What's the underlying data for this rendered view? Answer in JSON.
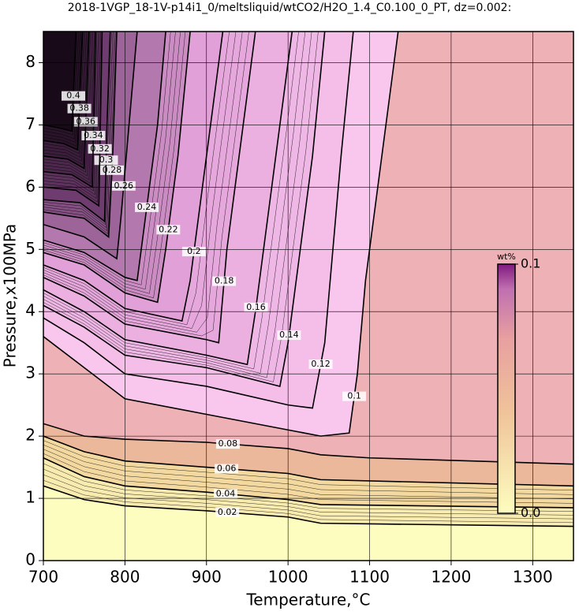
{
  "chart_data": {
    "type": "contour",
    "title": "2018-1VGP_18-1V-p14i1_0/meltsliquid/wtCO2/H2O_1.4_C0.100_0_PT, dz=0.002:",
    "x_label": "Temperature,°C",
    "y_label": "Pressure,x100MPa",
    "xlim": [
      700,
      1350
    ],
    "ylim": [
      0,
      8.5
    ],
    "xticks": [
      700,
      800,
      900,
      1000,
      1100,
      1200,
      1300
    ],
    "yticks": [
      0,
      1,
      2,
      3,
      4,
      5,
      6,
      7,
      8
    ],
    "grid": true,
    "colorbar": {
      "label": "wt%",
      "lim": [
        0,
        0.1
      ],
      "ticks": [
        {
          "value": 0,
          "label": "0.0"
        },
        0.1
      ]
    },
    "contours": [
      {
        "level": 0.02,
        "x": [
          700,
          750,
          800,
          900,
          1000,
          1040,
          1350
        ],
        "y": [
          1.2,
          0.98,
          0.88,
          0.8,
          0.7,
          0.6,
          0.55
        ]
      },
      {
        "level": 0.04,
        "x": [
          700,
          750,
          800,
          900,
          1000,
          1040,
          1350
        ],
        "y": [
          1.65,
          1.35,
          1.2,
          1.1,
          0.98,
          0.9,
          0.85
        ]
      },
      {
        "level": 0.06,
        "x": [
          700,
          750,
          800,
          900,
          1000,
          1040,
          1350
        ],
        "y": [
          2.0,
          1.75,
          1.6,
          1.5,
          1.4,
          1.3,
          1.2
        ]
      },
      {
        "level": 0.08,
        "x": [
          700,
          750,
          800,
          900,
          1000,
          1040,
          1100,
          1350
        ],
        "y": [
          2.2,
          2.0,
          1.95,
          1.9,
          1.8,
          1.7,
          1.65,
          1.55
        ]
      },
      {
        "level": 0.1,
        "x": [
          700,
          750,
          800,
          900,
          1000,
          1040,
          1075,
          1085,
          1095,
          1105,
          1125,
          1135
        ],
        "y": [
          3.6,
          3.1,
          2.6,
          2.35,
          2.1,
          2.0,
          2.05,
          3.0,
          4.5,
          5.5,
          7.5,
          8.5
        ]
      },
      {
        "level": 0.12,
        "x": [
          700,
          750,
          800,
          900,
          1000,
          1030,
          1045,
          1055,
          1065,
          1080
        ],
        "y": [
          3.9,
          3.5,
          3.0,
          2.8,
          2.5,
          2.45,
          3.5,
          5,
          6.5,
          8.5
        ]
      },
      {
        "level": 0.14,
        "x": [
          700,
          750,
          800,
          900,
          990,
          1000,
          1015,
          1030,
          1045
        ],
        "y": [
          4.1,
          3.75,
          3.3,
          3.1,
          2.8,
          3.5,
          5,
          6.5,
          8.5
        ]
      },
      {
        "level": 0.16,
        "x": [
          700,
          750,
          800,
          900,
          950,
          960,
          975,
          990,
          1005
        ],
        "y": [
          4.35,
          4.0,
          3.55,
          3.3,
          3.15,
          4,
          5.5,
          7,
          8.5
        ]
      },
      {
        "level": 0.18,
        "x": [
          700,
          750,
          800,
          900,
          915,
          925,
          940,
          960
        ],
        "y": [
          4.55,
          4.25,
          3.8,
          3.55,
          3.5,
          5,
          6.5,
          8.5
        ]
      },
      {
        "level": 0.2,
        "x": [
          700,
          750,
          800,
          870,
          880,
          895,
          910,
          920
        ],
        "y": [
          4.75,
          4.5,
          4.05,
          3.85,
          4.5,
          6,
          7.5,
          8.5
        ]
      },
      {
        "level": 0.22,
        "x": [
          700,
          750,
          800,
          840,
          850,
          865,
          880
        ],
        "y": [
          4.95,
          4.75,
          4.3,
          4.15,
          5,
          6.5,
          8.5
        ]
      },
      {
        "level": 0.24,
        "x": [
          700,
          750,
          800,
          815,
          825,
          840,
          850
        ],
        "y": [
          5.15,
          4.95,
          4.55,
          4.5,
          5.5,
          7,
          8.5
        ]
      },
      {
        "level": 0.26,
        "x": [
          700,
          750,
          790,
          795,
          805,
          815
        ],
        "y": [
          5.4,
          5.2,
          4.85,
          5.5,
          7,
          8.5
        ]
      },
      {
        "level": 0.28,
        "x": [
          700,
          750,
          780,
          785,
          790
        ],
        "y": [
          5.6,
          5.5,
          5.2,
          6.5,
          8.5
        ]
      },
      {
        "level": 0.3,
        "x": [
          700,
          745,
          775,
          778,
          782
        ],
        "y": [
          5.8,
          5.75,
          5.45,
          7,
          8.5
        ]
      },
      {
        "level": 0.32,
        "x": [
          700,
          740,
          768,
          772
        ],
        "y": [
          6.0,
          5.95,
          5.7,
          8.5
        ]
      },
      {
        "level": 0.34,
        "x": [
          700,
          735,
          760,
          764
        ],
        "y": [
          6.25,
          6.2,
          6.0,
          8.5
        ]
      },
      {
        "level": 0.36,
        "x": [
          700,
          730,
          750,
          756
        ],
        "y": [
          6.5,
          6.45,
          6.3,
          8.5
        ]
      },
      {
        "level": 0.38,
        "x": [
          700,
          725,
          742,
          748
        ],
        "y": [
          6.75,
          6.7,
          6.6,
          8.5
        ]
      },
      {
        "level": 0.4,
        "x": [
          700,
          720,
          735,
          740
        ],
        "y": [
          7.0,
          6.95,
          6.9,
          8.5
        ]
      }
    ]
  }
}
